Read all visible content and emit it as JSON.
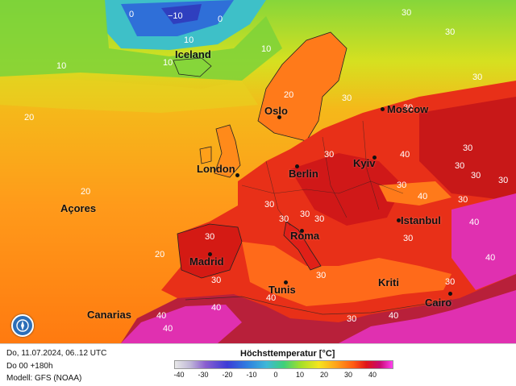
{
  "map": {
    "cities": [
      {
        "name": "Iceland"
      },
      {
        "name": "Oslo"
      },
      {
        "name": "Moscow"
      },
      {
        "name": "London"
      },
      {
        "name": "Berlin"
      },
      {
        "name": "Kyiv"
      },
      {
        "name": "Açores"
      },
      {
        "name": "Istanbul"
      },
      {
        "name": "Roma"
      },
      {
        "name": "Madrid"
      },
      {
        "name": "Kriti"
      },
      {
        "name": "Tunis"
      },
      {
        "name": "Cairo"
      },
      {
        "name": "Canarias"
      }
    ],
    "isotherm_labels": [
      "0",
      "−10",
      "0",
      "10",
      "10",
      "10",
      "20",
      "20",
      "20",
      "30",
      "30",
      "30",
      "30",
      "30",
      "30",
      "30",
      "30",
      "30",
      "30",
      "30",
      "30",
      "30",
      "30",
      "30",
      "30",
      "30",
      "30",
      "30",
      "30",
      "40",
      "40",
      "40",
      "40",
      "40",
      "40",
      "40",
      "40",
      "40",
      "10",
      "20",
      "30",
      "30"
    ],
    "colors": {
      "ocean_warm": "#ff8c1a",
      "ocean_cool": "#f5b21a",
      "land_hot": "#e0201a",
      "extreme": "#e030d0",
      "cold": "#2f7de0"
    }
  },
  "footer": {
    "date_line": "Do, 11.07.2024, 06..12 UTC",
    "run_line": "Do 00 +180h",
    "model_line": "Modell: GFS (NOAA)",
    "legend_title": "Höchsttemperatur [°C]",
    "legend_ticks": [
      "-40",
      "-30",
      "-20",
      "-10",
      "0",
      "10",
      "20",
      "30",
      "40"
    ]
  }
}
